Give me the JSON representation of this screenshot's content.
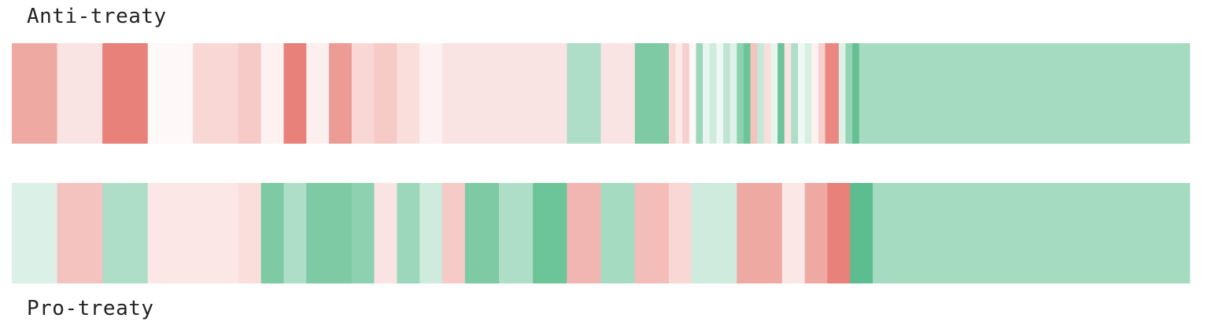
{
  "labels": {
    "top": "Anti-treaty",
    "bottom": "Pro-treaty"
  },
  "colors": {
    "negative": "#e67a72",
    "positive": "#5cbd8e",
    "neutral": "#ffffff"
  },
  "chart_data": [
    {
      "type": "heatmap",
      "name": "Anti-treaty",
      "x_extent": [
        0,
        52
      ],
      "segments": [
        {
          "start": 0,
          "end": 2,
          "value": -0.65
        },
        {
          "start": 2,
          "end": 4,
          "value": -0.2
        },
        {
          "start": 4,
          "end": 6,
          "value": -0.95
        },
        {
          "start": 6,
          "end": 8,
          "value": -0.05
        },
        {
          "start": 8,
          "end": 10,
          "value": -0.3
        },
        {
          "start": 10,
          "end": 11,
          "value": -0.4
        },
        {
          "start": 11,
          "end": 12,
          "value": -0.1
        },
        {
          "start": 12,
          "end": 13,
          "value": -0.95
        },
        {
          "start": 13,
          "end": 14,
          "value": -0.12
        },
        {
          "start": 14,
          "end": 15,
          "value": -0.75
        },
        {
          "start": 15,
          "end": 16,
          "value": -0.3
        },
        {
          "start": 16,
          "end": 17,
          "value": -0.4
        },
        {
          "start": 17,
          "end": 18,
          "value": -0.25
        },
        {
          "start": 18,
          "end": 19,
          "value": -0.1
        },
        {
          "start": 19,
          "end": 24.5,
          "value": -0.2
        },
        {
          "start": 24.5,
          "end": 26,
          "value": 0.5
        },
        {
          "start": 26,
          "end": 27.5,
          "value": -0.2
        },
        {
          "start": 27.5,
          "end": 29,
          "value": 0.8
        },
        {
          "start": 29,
          "end": 29.3,
          "value": -0.3
        },
        {
          "start": 29.3,
          "end": 29.6,
          "value": -0.15
        },
        {
          "start": 29.6,
          "end": 29.9,
          "value": -0.35
        },
        {
          "start": 29.9,
          "end": 30.2,
          "value": -0.05
        },
        {
          "start": 30.2,
          "end": 30.5,
          "value": 0.6
        },
        {
          "start": 30.5,
          "end": 30.8,
          "value": 0.15
        },
        {
          "start": 30.8,
          "end": 31.1,
          "value": 0.3
        },
        {
          "start": 31.1,
          "end": 31.4,
          "value": 0.1
        },
        {
          "start": 31.4,
          "end": 31.7,
          "value": 0.4
        },
        {
          "start": 31.7,
          "end": 32.0,
          "value": 0.2
        },
        {
          "start": 32.0,
          "end": 32.3,
          "value": 0.7
        },
        {
          "start": 32.3,
          "end": 32.6,
          "value": 0.9
        },
        {
          "start": 32.6,
          "end": 32.9,
          "value": -0.45
        },
        {
          "start": 32.9,
          "end": 33.2,
          "value": 0.35
        },
        {
          "start": 33.2,
          "end": 33.5,
          "value": -0.25
        },
        {
          "start": 33.5,
          "end": 33.8,
          "value": 0.15
        },
        {
          "start": 33.8,
          "end": 34.1,
          "value": 0.9
        },
        {
          "start": 34.1,
          "end": 34.4,
          "value": -0.2
        },
        {
          "start": 34.4,
          "end": 34.7,
          "value": 0.5
        },
        {
          "start": 34.7,
          "end": 35.0,
          "value": 0.1
        },
        {
          "start": 35.0,
          "end": 35.3,
          "value": 0.25
        },
        {
          "start": 35.3,
          "end": 35.6,
          "value": -0.1
        },
        {
          "start": 35.6,
          "end": 35.9,
          "value": -0.35
        },
        {
          "start": 35.9,
          "end": 36.5,
          "value": -0.9
        },
        {
          "start": 36.5,
          "end": 36.8,
          "value": 0.2
        },
        {
          "start": 36.8,
          "end": 37.1,
          "value": 0.65
        },
        {
          "start": 37.1,
          "end": 37.4,
          "value": 0.95
        },
        {
          "start": 37.4,
          "end": 52,
          "value": 0.55
        }
      ]
    },
    {
      "type": "heatmap",
      "name": "Pro-treaty",
      "x_extent": [
        0,
        52
      ],
      "segments": [
        {
          "start": 0,
          "end": 2,
          "value": 0.22
        },
        {
          "start": 2,
          "end": 4,
          "value": -0.45
        },
        {
          "start": 4,
          "end": 6,
          "value": 0.5
        },
        {
          "start": 6,
          "end": 10,
          "value": -0.18
        },
        {
          "start": 10,
          "end": 11,
          "value": -0.25
        },
        {
          "start": 11,
          "end": 12,
          "value": 0.8
        },
        {
          "start": 12,
          "end": 13,
          "value": 0.5
        },
        {
          "start": 13,
          "end": 15,
          "value": 0.8
        },
        {
          "start": 15,
          "end": 16,
          "value": 0.7
        },
        {
          "start": 16,
          "end": 17,
          "value": -0.2
        },
        {
          "start": 17,
          "end": 18,
          "value": 0.6
        },
        {
          "start": 18,
          "end": 19,
          "value": 0.3
        },
        {
          "start": 19,
          "end": 20,
          "value": -0.4
        },
        {
          "start": 20,
          "end": 21.5,
          "value": 0.8
        },
        {
          "start": 21.5,
          "end": 23,
          "value": 0.5
        },
        {
          "start": 23,
          "end": 24.5,
          "value": 0.9
        },
        {
          "start": 24.5,
          "end": 26,
          "value": -0.55
        },
        {
          "start": 26,
          "end": 27.5,
          "value": 0.55
        },
        {
          "start": 27.5,
          "end": 29,
          "value": -0.5
        },
        {
          "start": 29,
          "end": 30,
          "value": -0.3
        },
        {
          "start": 30,
          "end": 32,
          "value": 0.3
        },
        {
          "start": 32,
          "end": 34,
          "value": -0.65
        },
        {
          "start": 34,
          "end": 35,
          "value": -0.18
        },
        {
          "start": 35,
          "end": 36,
          "value": -0.65
        },
        {
          "start": 36,
          "end": 37,
          "value": -0.95
        },
        {
          "start": 37,
          "end": 38,
          "value": 1.0
        },
        {
          "start": 38,
          "end": 52,
          "value": 0.55
        }
      ]
    }
  ]
}
